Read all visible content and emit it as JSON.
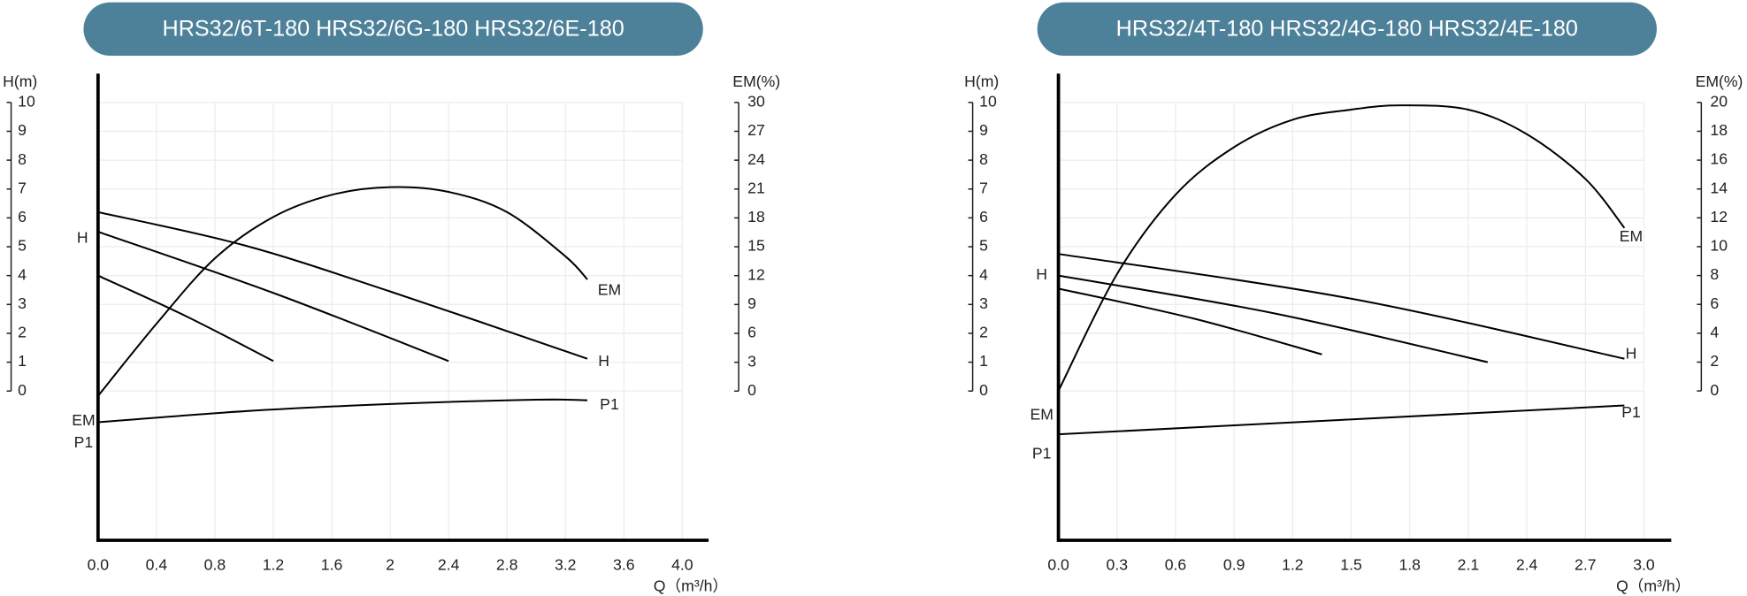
{
  "chart_data": [
    {
      "type": "line",
      "title": "HRS32/6T-180 HRS32/6G-180 HRS32/6E-180",
      "xlabel": "Q（m³/h）",
      "ylabel": "H(m)",
      "y2label": "EM(%)",
      "xlim": [
        0,
        4.18
      ],
      "xticks": [
        {
          "value": 0,
          "label": "0.0"
        },
        0.4,
        0.8,
        1.2,
        1.6,
        2.0,
        2.4,
        2.8,
        3.2,
        3.6,
        {
          "value": 4,
          "label": "4.0"
        }
      ],
      "ylim": [
        -5.17,
        11
      ],
      "yticks": [
        0,
        1,
        2,
        3,
        4,
        5,
        6,
        7,
        8,
        9,
        10
      ],
      "y2lim": [
        -15.5,
        33
      ],
      "y2ticks": [
        0,
        3,
        6,
        9,
        12,
        15,
        18,
        21,
        24,
        27,
        30
      ],
      "grid": true,
      "color": "#000000",
      "series": [
        {
          "name": "H",
          "x": [
            0,
            1,
            2,
            3.35
          ],
          "values": [
            6.2,
            5.05,
            3.45,
            1.12
          ]
        },
        {
          "name": "H",
          "x": [
            0,
            1.2,
            2.4
          ],
          "values": [
            5.52,
            3.4,
            1.04
          ]
        },
        {
          "name": "H",
          "x": [
            0,
            0.6,
            1.2
          ],
          "values": [
            4.0,
            2.6,
            1.04
          ]
        },
        {
          "name": "EM",
          "axis": "y2",
          "x": [
            0,
            0.4,
            0.8,
            1.2,
            1.6,
            2.0,
            2.4,
            2.8,
            3.2,
            3.35
          ],
          "values": [
            -0.5,
            7.0,
            13.8,
            18.1,
            20.4,
            21.2,
            20.7,
            18.6,
            14.0,
            11.6
          ]
        },
        {
          "name": "P1",
          "x": [
            0,
            1,
            2,
            3,
            3.35
          ],
          "values": [
            -1.08,
            -0.7,
            -0.45,
            -0.3,
            -0.32
          ]
        }
      ],
      "annotations": [
        "H",
        "EM",
        "P1",
        "EM",
        "H",
        "P1"
      ]
    },
    {
      "type": "line",
      "title": "HRS32/4T-180 HRS32/4G-180 HRS32/4E-180",
      "xlabel": "Q（m³/h）",
      "ylabel": "H(m)",
      "y2label": "EM(%)",
      "xlim": [
        0,
        3.14
      ],
      "xticks": [
        {
          "value": 0,
          "label": "0.0"
        },
        0.3,
        0.6,
        0.9,
        1.2,
        1.5,
        1.8,
        2.1,
        2.4,
        2.7,
        {
          "value": 3,
          "label": "3.0"
        }
      ],
      "ylim": [
        -5.17,
        11
      ],
      "yticks": [
        0,
        1,
        2,
        3,
        4,
        5,
        6,
        7,
        8,
        9,
        10
      ],
      "y2lim": [
        -10.35,
        22
      ],
      "y2ticks": [
        0,
        2,
        4,
        6,
        8,
        10,
        12,
        14,
        16,
        18,
        20
      ],
      "grid": true,
      "color": "#000000",
      "series": [
        {
          "name": "H",
          "x": [
            0,
            1.5,
            2.9
          ],
          "values": [
            4.75,
            3.2,
            1.12
          ]
        },
        {
          "name": "H",
          "x": [
            0,
            1.1,
            2.2
          ],
          "values": [
            4.0,
            2.7,
            1.0
          ]
        },
        {
          "name": "H",
          "x": [
            0,
            0.7,
            1.35
          ],
          "values": [
            3.55,
            2.5,
            1.27
          ]
        },
        {
          "name": "EM",
          "axis": "y2",
          "x": [
            0,
            0.3,
            0.6,
            0.9,
            1.2,
            1.5,
            1.75,
            2.1,
            2.4,
            2.7,
            2.9
          ],
          "values": [
            0,
            8.1,
            13.6,
            16.9,
            18.8,
            19.5,
            19.8,
            19.5,
            17.8,
            14.7,
            11.3
          ]
        },
        {
          "name": "P1",
          "x": [
            0,
            1.45,
            2.9
          ],
          "values": [
            -1.5,
            -1.0,
            -0.5
          ]
        }
      ],
      "annotations": [
        "H",
        "EM",
        "P1",
        "EM",
        "H",
        "P1"
      ]
    }
  ]
}
